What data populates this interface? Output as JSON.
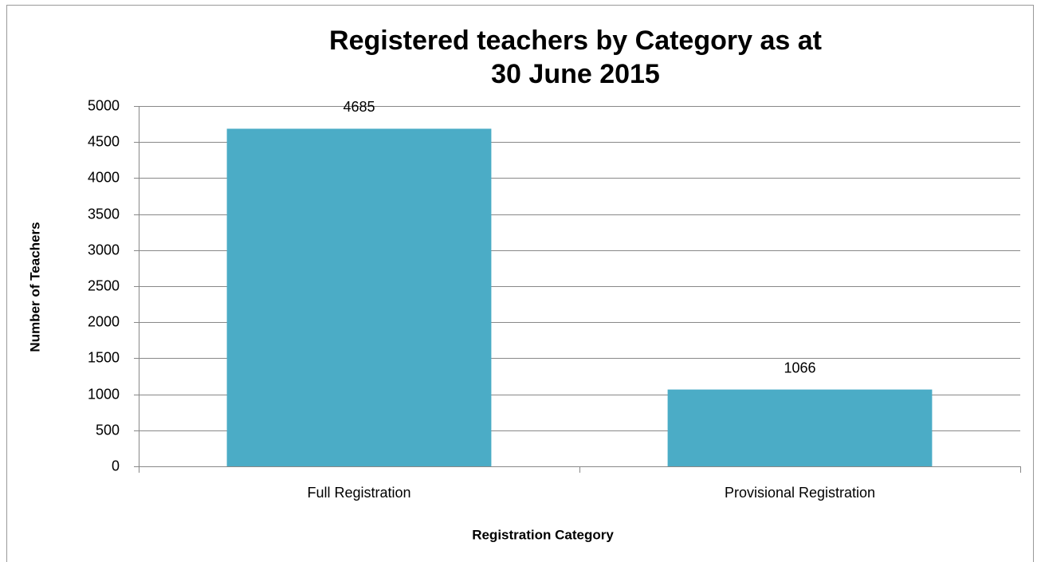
{
  "chart_data": {
    "type": "bar",
    "title": "Registered teachers by Category as at\n30 June 2015",
    "x_label": "Registration Category",
    "y_label": "Number of Teachers",
    "categories": [
      "Full Registration",
      "Provisional Registration"
    ],
    "values": [
      4685,
      1066
    ],
    "color": "#4bacc6",
    "ylim": [
      0,
      5000
    ],
    "yticks": [
      0,
      500,
      1000,
      1500,
      2000,
      2500,
      3000,
      3500,
      4000,
      4500,
      5000
    ],
    "grid": true
  }
}
